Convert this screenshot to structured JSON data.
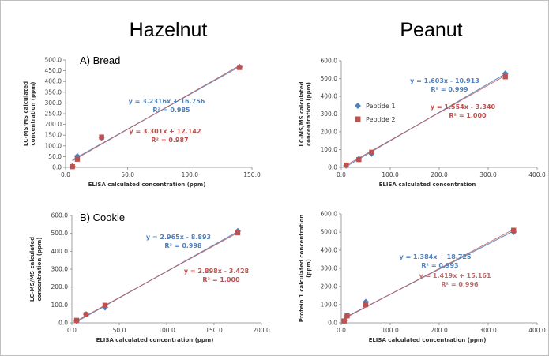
{
  "column_titles": [
    "Hazelnut",
    "Peanut"
  ],
  "colors": {
    "series1": "#4F81BD",
    "series2": "#C0504D",
    "series2_eq_light": "#B86E6E",
    "grid": "none"
  },
  "chart_data": [
    {
      "type": "scatter",
      "panel_label": "A) Bread",
      "title": "",
      "xlabel": "ELISA calculated concentration (ppm)",
      "ylabel": [
        "LC-MS/MS calculated",
        "concentration (ppm)"
      ],
      "xlim": [
        0,
        150
      ],
      "ylim": [
        0,
        500
      ],
      "xticks": [
        0,
        50,
        100,
        150
      ],
      "yticks": [
        0,
        50,
        100,
        150,
        200,
        250,
        300,
        350,
        400,
        450,
        500
      ],
      "legend": "none",
      "series": [
        {
          "points": [
            [
              5.5,
              5
            ],
            [
              9.5,
              52
            ],
            [
              29,
              138
            ],
            [
              140,
              468
            ]
          ],
          "trendline": {
            "slope": 3.2316,
            "intercept": 16.756,
            "x": [
              5.5,
              140
            ]
          },
          "equation": "y = 3.2316x + 16.756",
          "r2": "R² = 0.985"
        },
        {
          "points": [
            [
              5.5,
              3
            ],
            [
              9.5,
              38
            ],
            [
              29,
              141
            ],
            [
              140,
              465
            ]
          ],
          "trendline": {
            "slope": 3.301,
            "intercept": 12.142,
            "x": [
              5.5,
              140
            ]
          },
          "equation": "y = 3.301x + 12.142",
          "r2": "R² = 0.987"
        }
      ]
    },
    {
      "type": "scatter",
      "panel_label": "",
      "title": "",
      "xlabel": "ELISA calculated concentration",
      "ylabel": [
        "LC-MS/MS calculated",
        "concentration (ppm)"
      ],
      "xlim": [
        0,
        400
      ],
      "ylim": [
        0,
        600
      ],
      "xticks": [
        0,
        100,
        200,
        300,
        400
      ],
      "yticks": [
        0,
        100,
        200,
        300,
        400,
        500,
        600
      ],
      "legend": "left",
      "series": [
        {
          "name": "Peptide 1",
          "points": [
            [
              10,
              10
            ],
            [
              36,
              47
            ],
            [
              62,
              77
            ],
            [
              335,
              528
            ]
          ],
          "trendline": {
            "slope": 1.603,
            "intercept": -10.913,
            "x": [
              10,
              335
            ]
          },
          "equation": "y = 1.603x - 10.913",
          "r2": "R² = 0.999"
        },
        {
          "name": "Peptide 2",
          "points": [
            [
              10,
              13
            ],
            [
              36,
              44
            ],
            [
              62,
              85
            ],
            [
              335,
              510
            ]
          ],
          "trendline": {
            "slope": 1.554,
            "intercept": -3.34,
            "x": [
              10,
              335
            ]
          },
          "equation": "y = 1.554x - 3.340",
          "r2": "R² = 1.000"
        }
      ]
    },
    {
      "type": "scatter",
      "panel_label": "B) Cookie",
      "title": "",
      "xlabel": "ELISA calculated concentration (ppm)",
      "ylabel": [
        "LC-MS/MS calculated",
        "concentration (ppm)"
      ],
      "xlim": [
        0,
        200
      ],
      "ylim": [
        0,
        600
      ],
      "xticks": [
        0,
        50,
        100,
        150,
        200
      ],
      "yticks": [
        0,
        100,
        200,
        300,
        400,
        500,
        600
      ],
      "legend": "none",
      "series": [
        {
          "points": [
            [
              5,
              10
            ],
            [
              15,
              48
            ],
            [
              35,
              86
            ],
            [
              175,
              513
            ]
          ],
          "trendline": {
            "slope": 2.965,
            "intercept": -8.893,
            "x": [
              5,
              175
            ]
          },
          "equation": "y = 2.965x - 8.893",
          "r2": "R² = 0.998"
        },
        {
          "points": [
            [
              5,
              14
            ],
            [
              15,
              46
            ],
            [
              35,
              98
            ],
            [
              175,
              503
            ]
          ],
          "trendline": {
            "slope": 2.898,
            "intercept": -3.428,
            "x": [
              5,
              175
            ]
          },
          "equation": "y = 2.898x - 3.428",
          "r2": "R² = 1.000"
        }
      ]
    },
    {
      "type": "scatter",
      "panel_label": "",
      "title": "",
      "xlabel": "ELISA calculated concentration (ppm)",
      "ylabel": [
        "Protein 1 calculated concentration",
        "(ppm)"
      ],
      "xlim": [
        0,
        400
      ],
      "ylim": [
        0,
        600
      ],
      "xticks": [
        0,
        100,
        200,
        300,
        400
      ],
      "yticks": [
        0,
        100,
        200,
        300,
        400,
        500,
        600
      ],
      "legend": "none",
      "series": [
        {
          "points": [
            [
              6,
              12
            ],
            [
              12,
              40
            ],
            [
              50,
              115
            ],
            [
              352,
              500
            ]
          ],
          "trendline": {
            "slope": 1.384,
            "intercept": 18.725,
            "x": [
              6,
              352
            ]
          },
          "equation": "y = 1.384x + 18.725",
          "r2": "R² = 0.993"
        },
        {
          "points": [
            [
              6,
              10
            ],
            [
              12,
              38
            ],
            [
              50,
              100
            ],
            [
              352,
              510
            ]
          ],
          "trendline": {
            "slope": 1.419,
            "intercept": 15.161,
            "x": [
              6,
              352
            ]
          },
          "equation": "y = 1.419x + 15.161",
          "r2": "R² = 0.996"
        }
      ]
    }
  ]
}
